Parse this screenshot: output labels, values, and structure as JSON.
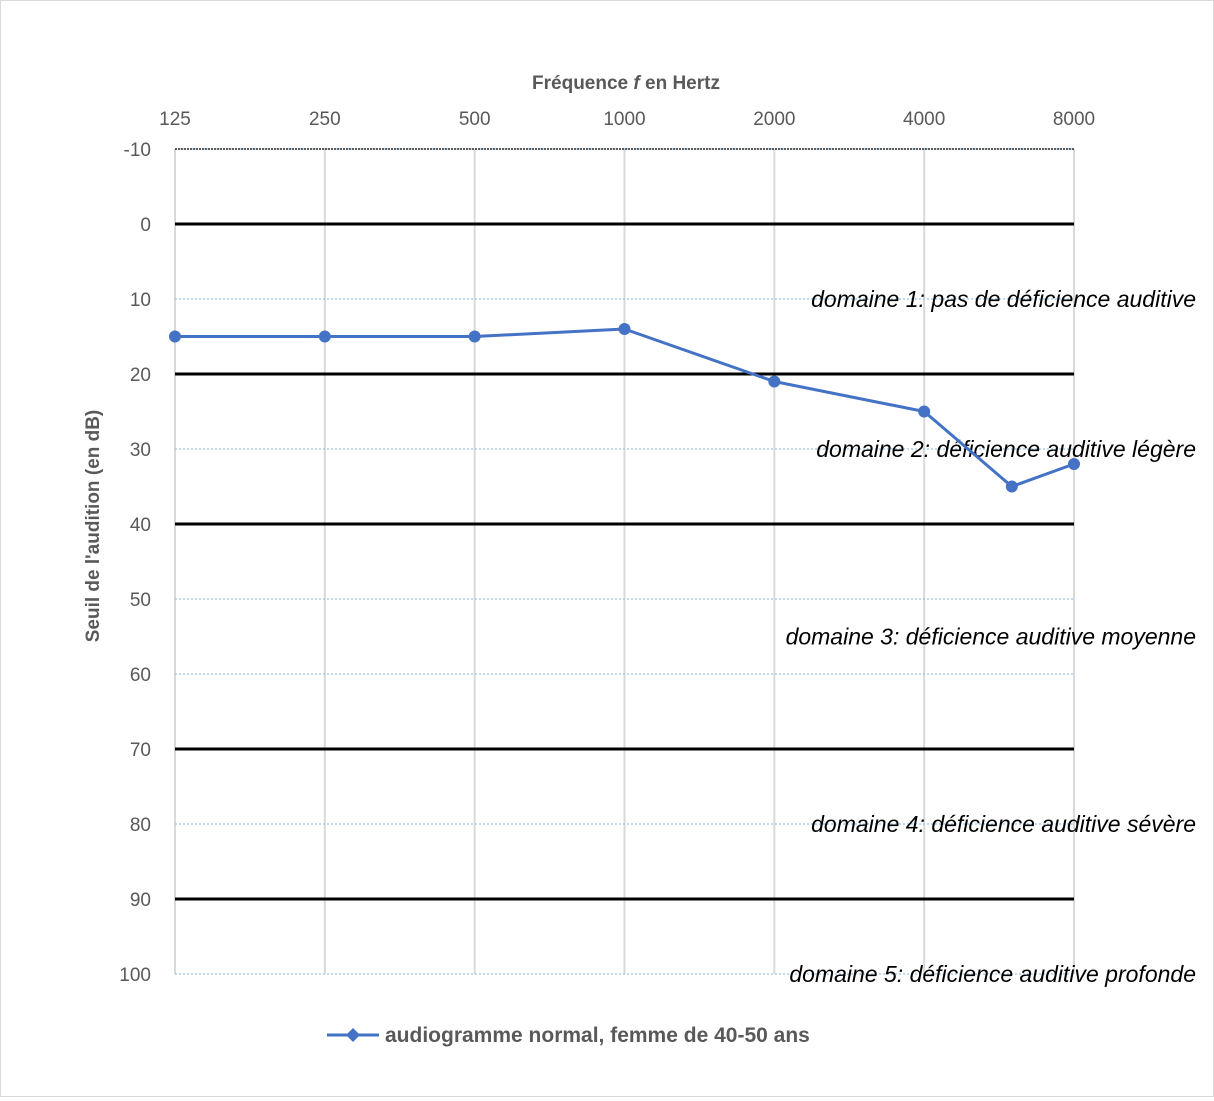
{
  "chart_data": {
    "type": "line",
    "title": "",
    "xlabel_prefix": "Fréquence ",
    "xlabel_symbol": "f",
    "xlabel_suffix": " en Hertz",
    "ylabel": "Seuil de l'audition (en dB)",
    "x_scale": "log2",
    "x_axis_position": "top",
    "y_inverted": true,
    "xlim": [
      125,
      8000
    ],
    "ylim": [
      -10,
      100
    ],
    "x_ticks": [
      125,
      250,
      500,
      1000,
      2000,
      4000,
      8000
    ],
    "y_ticks": [
      -10,
      0,
      10,
      20,
      30,
      40,
      50,
      60,
      70,
      80,
      90,
      100
    ],
    "grid": true,
    "boundaries": [
      0,
      20,
      40,
      70,
      90
    ],
    "zones": [
      {
        "label": "domaine 1: pas de déficience auditive",
        "y": 10
      },
      {
        "label": "domaine 2: déficience auditive légère",
        "y": 30
      },
      {
        "label": "domaine 3: déficience auditive moyenne",
        "y": 55
      },
      {
        "label": "domaine 4: déficience auditive sévère",
        "y": 80
      },
      {
        "label": "domaine 5: déficience auditive profonde",
        "y": 100
      }
    ],
    "series": [
      {
        "name": "audiogramme normal, femme de 40-50 ans",
        "color": "#4472c4",
        "x": [
          125,
          250,
          500,
          1000,
          2000,
          4000,
          6000,
          8000
        ],
        "y": [
          15,
          15,
          15,
          14,
          21,
          25,
          35,
          32
        ]
      }
    ],
    "legend_position": "bottom"
  }
}
